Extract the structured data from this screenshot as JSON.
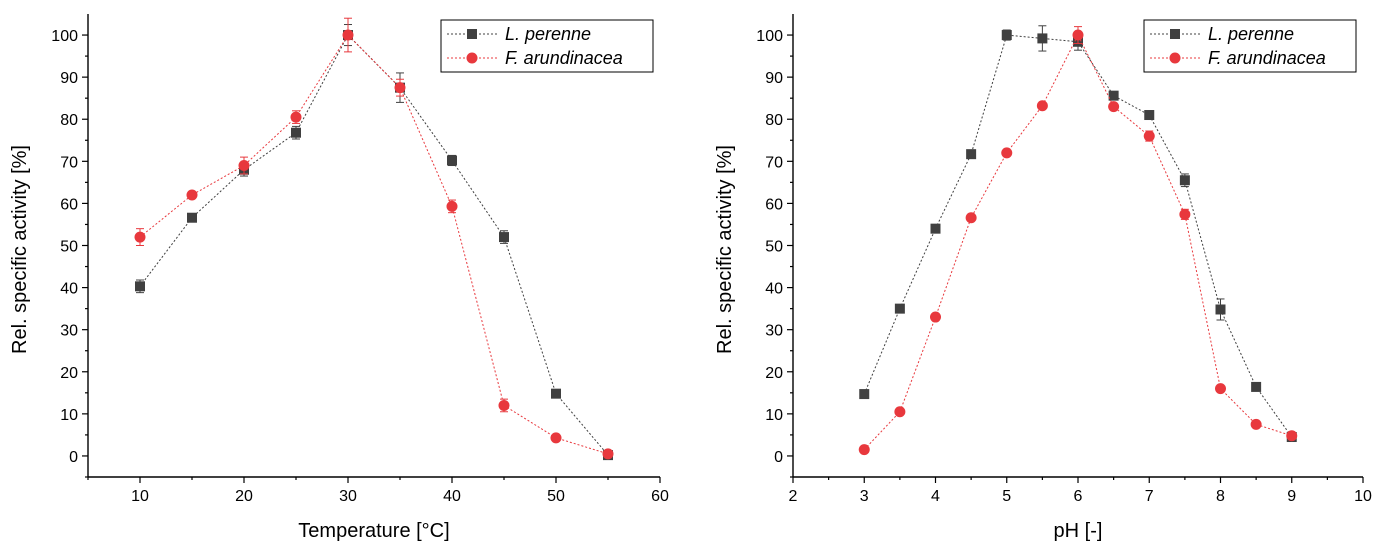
{
  "chart_data": [
    {
      "type": "line",
      "xlabel": "Temperature [°C]",
      "ylabel": "Rel. specific activity [%]",
      "xlim": [
        5,
        60
      ],
      "ylim": [
        -5,
        105
      ],
      "xticks": [
        10,
        20,
        30,
        40,
        50,
        60
      ],
      "yticks": [
        0,
        10,
        20,
        30,
        40,
        50,
        60,
        70,
        80,
        90,
        100
      ],
      "legend_position": "top-right",
      "series": [
        {
          "name": "L. perenne",
          "color": "#404040",
          "marker": "square",
          "x": [
            10,
            15,
            20,
            25,
            30,
            35,
            40,
            45,
            50,
            55
          ],
          "y": [
            40.3,
            56.6,
            68.0,
            76.8,
            100.0,
            87.5,
            70.2,
            52.0,
            14.8,
            0.2
          ],
          "err": [
            1.5,
            0.8,
            1.5,
            1.5,
            2.5,
            3.5,
            1.2,
            1.5,
            0.6,
            0.3
          ]
        },
        {
          "name": "F. arundinacea",
          "color": "#e8383d",
          "marker": "circle",
          "x": [
            10,
            15,
            20,
            25,
            30,
            35,
            40,
            45,
            50,
            55
          ],
          "y": [
            52.0,
            62.0,
            69.0,
            80.5,
            100.0,
            87.5,
            59.3,
            12.0,
            4.3,
            0.5
          ],
          "err": [
            2.0,
            0.8,
            2.0,
            1.5,
            4.0,
            2.0,
            1.5,
            1.5,
            0.5,
            0.3
          ]
        }
      ]
    },
    {
      "type": "line",
      "xlabel": "pH [-]",
      "ylabel": "Rel. specific activity [%]",
      "xlim": [
        2,
        10
      ],
      "ylim": [
        -5,
        105
      ],
      "xticks": [
        2,
        3,
        4,
        5,
        6,
        7,
        8,
        9,
        10
      ],
      "yticks": [
        0,
        10,
        20,
        30,
        40,
        50,
        60,
        70,
        80,
        90,
        100
      ],
      "legend_position": "top-right",
      "series": [
        {
          "name": "L. perenne",
          "color": "#404040",
          "marker": "square",
          "x": [
            3,
            3.5,
            4,
            4.5,
            5,
            5.5,
            6,
            6.5,
            7,
            7.5,
            8,
            8.5,
            9
          ],
          "y": [
            14.7,
            35.0,
            54.0,
            71.7,
            100.0,
            99.2,
            98.4,
            85.6,
            81.0,
            65.5,
            34.8,
            16.4,
            4.5
          ],
          "err": [
            0.5,
            0.5,
            1.0,
            0.5,
            1.2,
            3.0,
            2.0,
            0.8,
            0.5,
            1.5,
            2.5,
            0.5,
            0.3
          ]
        },
        {
          "name": "F. arundinacea",
          "color": "#e8383d",
          "marker": "circle",
          "x": [
            3,
            3.5,
            4,
            4.5,
            5,
            5.5,
            6,
            6.5,
            7,
            7.5,
            8,
            8.5,
            9
          ],
          "y": [
            1.5,
            10.5,
            33.0,
            56.6,
            72.0,
            83.2,
            100.0,
            83.0,
            76.0,
            57.4,
            16.0,
            7.5,
            4.8
          ],
          "err": [
            0.3,
            0.3,
            0.5,
            0.5,
            0.5,
            0.5,
            2.0,
            0.8,
            1.2,
            1.2,
            0.5,
            0.3,
            0.3
          ]
        }
      ]
    }
  ]
}
